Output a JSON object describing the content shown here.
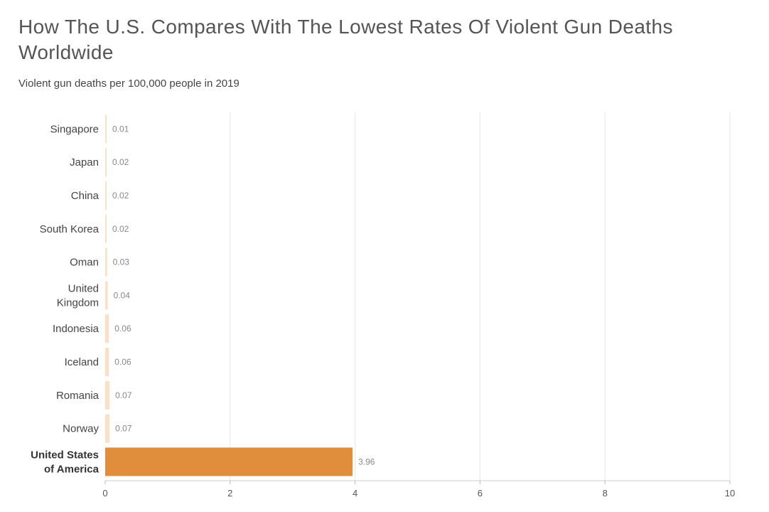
{
  "chart_data": {
    "type": "bar",
    "orientation": "horizontal",
    "title": "How The U.S. Compares With The Lowest Rates Of Violent Gun Deaths Worldwide",
    "subtitle": "Violent gun deaths per 100,000 people in 2019",
    "categories": [
      [
        "Singapore"
      ],
      [
        "Japan"
      ],
      [
        "China"
      ],
      [
        "South Korea"
      ],
      [
        "Oman"
      ],
      [
        "United",
        "Kingdom"
      ],
      [
        "Indonesia"
      ],
      [
        "Iceland"
      ],
      [
        "Romania"
      ],
      [
        "Norway"
      ],
      [
        "United States",
        "of America"
      ]
    ],
    "values": [
      0.01,
      0.02,
      0.02,
      0.02,
      0.03,
      0.04,
      0.06,
      0.06,
      0.07,
      0.07,
      3.96
    ],
    "value_labels": [
      "0.01",
      "0.02",
      "0.02",
      "0.02",
      "0.03",
      "0.04",
      "0.06",
      "0.06",
      "0.07",
      "0.07",
      "3.96"
    ],
    "highlight_index": 10,
    "xlim": [
      0,
      10
    ],
    "xticks": [
      0,
      2,
      4,
      6,
      8,
      10
    ],
    "xlabel": "",
    "ylabel": "",
    "grid": true,
    "colors": {
      "bar": "#fbe0c8",
      "highlight": "#e08e3b",
      "grid": "#e6e6e6"
    }
  }
}
